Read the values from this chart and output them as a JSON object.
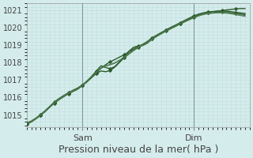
{
  "title": "",
  "xlabel": "Pression niveau de la mer( hPa )",
  "ylabel": "",
  "bg_color": "#d5ecec",
  "grid_color": "#b8d8d8",
  "ylim": [
    1014.3,
    1021.4
  ],
  "xlim": [
    0,
    48
  ],
  "yticks": [
    1015,
    1016,
    1017,
    1018,
    1019,
    1020,
    1021
  ],
  "xtick_positions": [
    12,
    36
  ],
  "xtick_labels": [
    "Sam",
    "Dim"
  ],
  "vlines": [
    12,
    36
  ],
  "font_size": 8,
  "xlabel_fontsize": 9,
  "series": [
    {
      "color": "#2d5a2d",
      "lw": 1.0,
      "marker": "D",
      "ms": 2.2,
      "markevery": 3,
      "y": [
        1014.55,
        1014.65,
        1014.82,
        1015.02,
        1015.25,
        1015.5,
        1015.75,
        1015.95,
        1016.12,
        1016.28,
        1016.42,
        1016.55,
        1016.72,
        1016.92,
        1017.15,
        1017.38,
        1017.52,
        1017.48,
        1017.55,
        1017.75,
        1018.02,
        1018.28,
        1018.52,
        1018.72,
        1018.88,
        1019.05,
        1019.22,
        1019.42,
        1019.58,
        1019.72,
        1019.85,
        1019.98,
        1020.12,
        1020.25,
        1020.38,
        1020.52,
        1020.65,
        1020.75,
        1020.82,
        1020.88,
        1020.92,
        1020.95,
        1020.98,
        1021.02,
        1021.05,
        1021.08,
        1021.1,
        1021.1
      ]
    },
    {
      "color": "#2d5a2d",
      "lw": 1.0,
      "marker": "D",
      "ms": 2.2,
      "markevery": 3,
      "y": [
        1014.5,
        1014.62,
        1014.8,
        1015.0,
        1015.22,
        1015.48,
        1015.72,
        1015.92,
        1016.08,
        1016.25,
        1016.38,
        1016.52,
        1016.72,
        1016.95,
        1017.22,
        1017.52,
        1017.82,
        1017.72,
        1017.65,
        1017.78,
        1018.05,
        1018.35,
        1018.65,
        1018.88,
        1018.95,
        1018.98,
        1019.12,
        1019.35,
        1019.55,
        1019.72,
        1019.88,
        1020.02,
        1020.15,
        1020.28,
        1020.42,
        1020.55,
        1020.68,
        1020.78,
        1020.85,
        1020.9,
        1020.92,
        1020.95,
        1020.95,
        1020.95,
        1020.92,
        1020.88,
        1020.85,
        1020.82
      ]
    },
    {
      "color": "#2d5a2d",
      "lw": 1.0,
      "marker": "D",
      "ms": 2.2,
      "markevery": 3,
      "y": [
        1014.48,
        1014.6,
        1014.78,
        1014.98,
        1015.2,
        1015.45,
        1015.68,
        1015.88,
        1016.05,
        1016.22,
        1016.35,
        1016.48,
        1016.68,
        1016.9,
        1017.15,
        1017.42,
        1017.68,
        1017.88,
        1018.05,
        1018.18,
        1018.32,
        1018.45,
        1018.62,
        1018.78,
        1018.92,
        1019.05,
        1019.18,
        1019.35,
        1019.52,
        1019.68,
        1019.82,
        1019.95,
        1020.08,
        1020.22,
        1020.35,
        1020.48,
        1020.6,
        1020.72,
        1020.8,
        1020.85,
        1020.88,
        1020.9,
        1020.9,
        1020.88,
        1020.85,
        1020.82,
        1020.78,
        1020.75
      ]
    },
    {
      "color": "#4d7a4d",
      "lw": 0.8,
      "marker": null,
      "ms": 0,
      "markevery": 1,
      "y": [
        1014.52,
        1014.63,
        1014.82,
        1015.02,
        1015.25,
        1015.5,
        1015.73,
        1015.93,
        1016.1,
        1016.27,
        1016.4,
        1016.52,
        1016.72,
        1016.95,
        1017.2,
        1017.45,
        1017.7,
        1017.82,
        1017.9,
        1018.0,
        1018.15,
        1018.32,
        1018.52,
        1018.72,
        1018.9,
        1019.05,
        1019.2,
        1019.38,
        1019.55,
        1019.7,
        1019.85,
        1019.98,
        1020.12,
        1020.25,
        1020.38,
        1020.5,
        1020.62,
        1020.72,
        1020.8,
        1020.85,
        1020.88,
        1020.9,
        1020.9,
        1020.88,
        1020.85,
        1020.8,
        1020.75,
        1020.7
      ]
    },
    {
      "color": "#4d7a4d",
      "lw": 0.8,
      "marker": null,
      "ms": 0,
      "markevery": 1,
      "y": [
        1014.5,
        1014.62,
        1014.8,
        1015.0,
        1015.22,
        1015.48,
        1015.7,
        1015.9,
        1016.07,
        1016.23,
        1016.37,
        1016.5,
        1016.7,
        1016.93,
        1017.18,
        1017.43,
        1017.67,
        1017.8,
        1017.87,
        1017.97,
        1018.12,
        1018.28,
        1018.48,
        1018.68,
        1018.85,
        1019.0,
        1019.15,
        1019.33,
        1019.5,
        1019.65,
        1019.8,
        1019.93,
        1020.07,
        1020.2,
        1020.33,
        1020.45,
        1020.57,
        1020.67,
        1020.75,
        1020.8,
        1020.83,
        1020.85,
        1020.85,
        1020.83,
        1020.8,
        1020.75,
        1020.7,
        1020.65
      ]
    }
  ]
}
